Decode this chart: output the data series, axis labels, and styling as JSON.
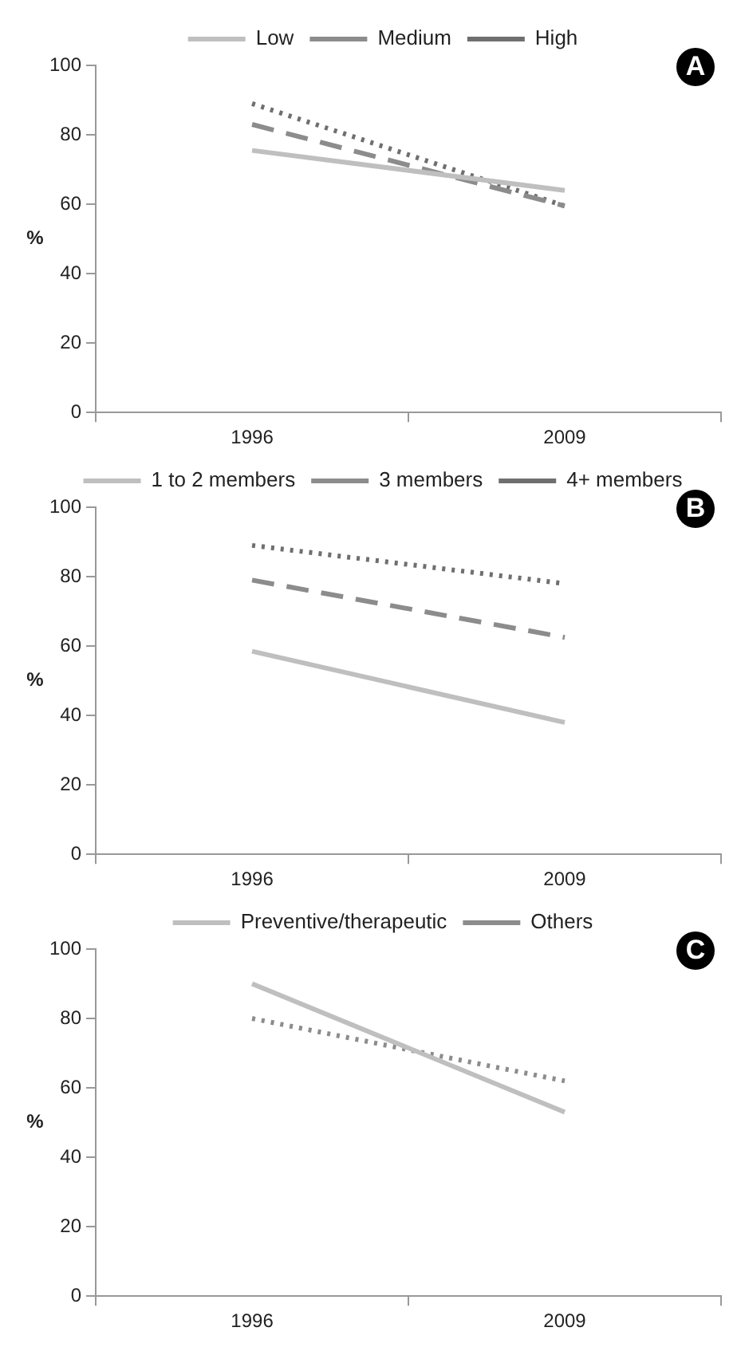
{
  "chart_data": [
    {
      "type": "line",
      "categories": [
        "1996",
        "2009"
      ],
      "ylabel": "%",
      "ylim": [
        0,
        100
      ],
      "yticks": [
        0,
        20,
        40,
        60,
        80,
        100
      ],
      "grid": false,
      "legend": "top",
      "annotations": [
        "A"
      ],
      "marker": "none",
      "series": [
        {
          "name": "Low",
          "color": "#bfbfbf",
          "line_style": "solid",
          "values": [
            75.5,
            64
          ]
        },
        {
          "name": "Medium",
          "color": "#8c8c8c",
          "line_style": "dashed",
          "values": [
            83,
            59.5
          ]
        },
        {
          "name": "High",
          "color": "#6f6f6f",
          "line_style": "dotted",
          "values": [
            89,
            59.5
          ]
        }
      ]
    },
    {
      "type": "line",
      "categories": [
        "1996",
        "2009"
      ],
      "ylabel": "%",
      "ylim": [
        0,
        100
      ],
      "yticks": [
        0,
        20,
        40,
        60,
        80,
        100
      ],
      "grid": false,
      "legend": "top",
      "annotations": [
        "B"
      ],
      "marker": "none",
      "series": [
        {
          "name": "1 to 2 members",
          "color": "#bfbfbf",
          "line_style": "solid",
          "values": [
            58.5,
            38
          ]
        },
        {
          "name": "3 members",
          "color": "#8c8c8c",
          "line_style": "dashed",
          "values": [
            79,
            62.5
          ]
        },
        {
          "name": "4+ members",
          "color": "#6f6f6f",
          "line_style": "dotted",
          "values": [
            89,
            78
          ]
        }
      ]
    },
    {
      "type": "line",
      "categories": [
        "1996",
        "2009"
      ],
      "ylabel": "%",
      "ylim": [
        0,
        100
      ],
      "yticks": [
        0,
        20,
        40,
        60,
        80,
        100
      ],
      "grid": false,
      "legend": "top",
      "annotations": [
        "C"
      ],
      "marker": "none",
      "series": [
        {
          "name": "Preventive/therapeutic",
          "color": "#bfbfbf",
          "line_style": "solid",
          "values": [
            90,
            53
          ]
        },
        {
          "name": "Others",
          "color": "#8c8c8c",
          "line_style": "dotted",
          "values": [
            80,
            62
          ]
        }
      ]
    }
  ]
}
